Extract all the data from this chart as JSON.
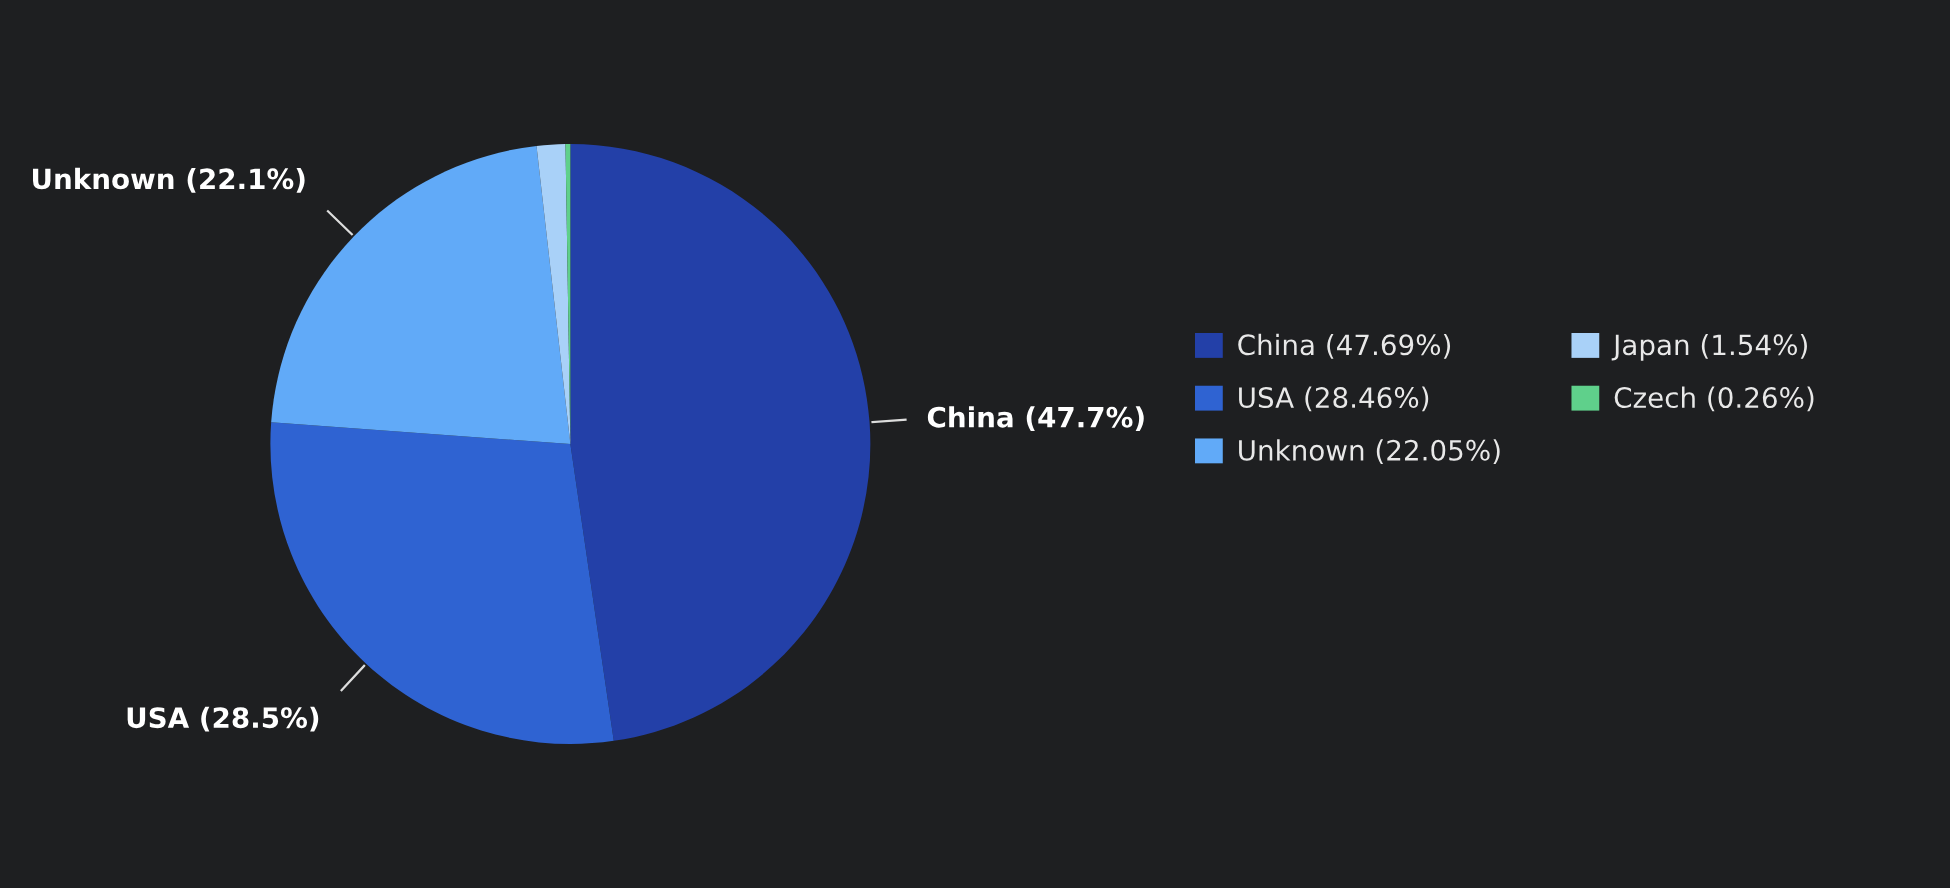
{
  "chart_data": {
    "type": "pie",
    "categories": [
      "China (47.69%)",
      "USA (28.46%)",
      "Unknown (22.05%)",
      "Japan (1.54%)",
      "Czech (0.26%)"
    ],
    "values": [
      47.69,
      28.46,
      22.05,
      1.54,
      0.26
    ],
    "colors": [
      "#2340a8",
      "#2f63d2",
      "#61aaf8",
      "#a9d1f8",
      "#5fd08b"
    ],
    "annotations": [
      "China (47.7%)",
      "USA (28.5%)",
      "Unknown (22.1%)"
    ],
    "legend": "right"
  }
}
